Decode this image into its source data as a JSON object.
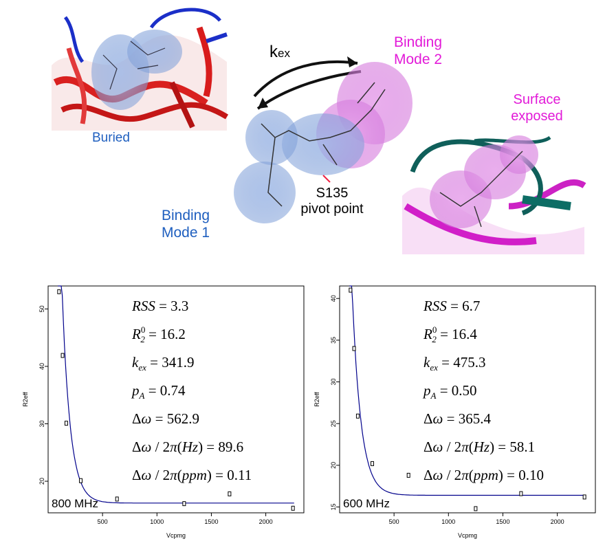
{
  "labels": {
    "kex": "k",
    "kex_sub": "ex",
    "buried": "Buried",
    "binding_mode_2": [
      "Binding",
      "Mode 2"
    ],
    "binding_mode_1": [
      "Binding",
      "Mode 1"
    ],
    "surface_exposed": [
      "Surface",
      "exposed"
    ],
    "pivot": [
      "S135",
      "pivot point"
    ]
  },
  "colors": {
    "blue_label": "#1f5fbf",
    "magenta_label": "#e21ad8",
    "curve": "#00008b"
  },
  "chart_data": [
    {
      "type": "scatter",
      "field": "800 MHz",
      "xlabel": "Vcpmg",
      "ylabel": "R2eff",
      "xlim": [
        0,
        2350
      ],
      "ylim": [
        14.5,
        54
      ],
      "xticks": [
        500,
        1000,
        1500,
        2000
      ],
      "yticks": [
        20,
        30,
        40,
        50
      ],
      "points": [
        [
          100,
          53
        ],
        [
          133,
          41.9
        ],
        [
          167,
          30.1
        ],
        [
          300,
          20.1
        ],
        [
          633,
          16.9
        ],
        [
          1250,
          16.1
        ],
        [
          1667,
          17.8
        ],
        [
          2250,
          15.3
        ]
      ],
      "fit": {
        "R20": 16.2,
        "amp": 93,
        "k": 0.0135,
        "x0": 60
      },
      "stats": {
        "RSS": "3.3",
        "R20": "16.2",
        "kex": "341.9",
        "pA": "0.74",
        "dw": "562.9",
        "dw_hz": "89.6",
        "dw_ppm": "0.11"
      }
    },
    {
      "type": "scatter",
      "field": "600 MHz",
      "xlabel": "Vcpmg",
      "ylabel": "R2eff",
      "xlim": [
        0,
        2350
      ],
      "ylim": [
        14.3,
        41.5
      ],
      "xticks": [
        500,
        1000,
        1500,
        2000
      ],
      "yticks": [
        15,
        20,
        25,
        30,
        35,
        40
      ],
      "points": [
        [
          100,
          41
        ],
        [
          133,
          34
        ],
        [
          167,
          25.9
        ],
        [
          300,
          20.2
        ],
        [
          633,
          18.8
        ],
        [
          1250,
          14.8
        ],
        [
          1667,
          16.6
        ],
        [
          2250,
          16.2
        ]
      ],
      "fit": {
        "R20": 16.4,
        "amp": 43,
        "k": 0.0125,
        "x0": 70
      },
      "stats": {
        "RSS": "6.7",
        "R20": "16.4",
        "kex": "475.3",
        "pA": "0.50",
        "dw": "365.4",
        "dw_hz": "58.1",
        "dw_ppm": "0.10"
      }
    }
  ]
}
